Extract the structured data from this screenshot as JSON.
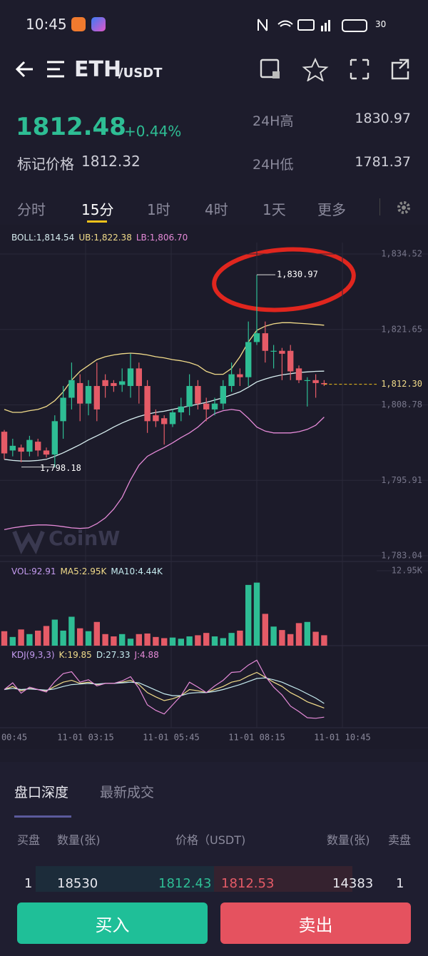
{
  "status": {
    "time": "10:45",
    "battery": "30"
  },
  "header": {
    "base": "ETH",
    "quote": "/USDT"
  },
  "ticker": {
    "price": "1812.48",
    "change": "+0.44%",
    "mark_label": "标记价格",
    "mark_price": "1812.32",
    "high_label": "24H高",
    "high": "1830.97",
    "low_label": "24H低",
    "low": "1781.37"
  },
  "tabs": [
    "分时",
    "15分",
    "1时",
    "4时",
    "1天",
    "更多"
  ],
  "chart_data": {
    "type": "candlestick",
    "watermark": "CoinW",
    "ylim": [
      1783.04,
      1834.52
    ],
    "yticks": [
      {
        "value": 1834.52,
        "label": "1,834.52"
      },
      {
        "value": 1821.65,
        "label": "1,821.65"
      },
      {
        "value": 1808.78,
        "label": "1,808.78"
      },
      {
        "value": 1795.91,
        "label": "1,795.91"
      },
      {
        "value": 1783.04,
        "label": "1,783.04"
      }
    ],
    "last_price": {
      "value": 1812.3,
      "label": "1,812.30"
    },
    "max_label": {
      "value": 1830.97,
      "label": "1,830.97"
    },
    "min_label": {
      "value": 1798.18,
      "label": "1,798.18"
    },
    "up_color": "#2ebd94",
    "down_color": "#e55b67",
    "open": [
      1804.2,
      1801,
      1801.5,
      1800.8,
      1802.5,
      1801,
      1800.3,
      1806,
      1810,
      1812.5,
      1809,
      1812,
      1813,
      1812.5,
      1812.2,
      1812,
      1815,
      1812,
      1807,
      1806.5,
      1805.5,
      1807.5,
      1808.5,
      1812,
      1809,
      1808,
      1809,
      1812,
      1814,
      1813.5,
      1819.5,
      1821,
      1818,
      1818,
      1818,
      1815,
      1813,
      1813,
      1812.5
    ],
    "close": [
      1800.5,
      1801.8,
      1800.8,
      1802.8,
      1801,
      1800.3,
      1806,
      1810,
      1813,
      1809,
      1812,
      1808,
      1812,
      1812,
      1812.8,
      1815,
      1812,
      1806,
      1806,
      1805.5,
      1807.5,
      1808.5,
      1812,
      1809,
      1808,
      1809,
      1812,
      1814,
      1813.5,
      1819.5,
      1821,
      1818,
      1818,
      1817.5,
      1814.5,
      1813,
      1813,
      1812.5,
      1812.3
    ],
    "high": [
      1804.5,
      1803,
      1802,
      1803.5,
      1803,
      1801.5,
      1807,
      1812,
      1816,
      1814,
      1813,
      1816,
      1814,
      1813,
      1815,
      1817.5,
      1816,
      1813,
      1808,
      1807,
      1808,
      1810,
      1814,
      1813,
      1810,
      1810,
      1813,
      1816,
      1815,
      1823,
      1830.97,
      1823,
      1819,
      1818.5,
      1819,
      1815.5,
      1813.5,
      1814,
      1813
    ],
    "low": [
      1799.5,
      1800,
      1799,
      1800,
      1800,
      1799.8,
      1798.18,
      1803,
      1808,
      1806,
      1807,
      1806,
      1810,
      1811,
      1811,
      1810,
      1809,
      1804,
      1805,
      1802,
      1805,
      1806,
      1807,
      1808,
      1806,
      1807,
      1808,
      1811,
      1812,
      1812,
      1819,
      1816,
      1815,
      1813,
      1813,
      1812.5,
      1808.5,
      1810,
      1812
    ],
    "series": [
      {
        "name": "BOLL:1,814.54",
        "color": "#d8eef0",
        "values": [
          1799.5,
          1799.3,
          1799.2,
          1799.2,
          1799.3,
          1799.5,
          1800,
          1800.6,
          1801.3,
          1802,
          1802.8,
          1803.5,
          1804.2,
          1805,
          1805.7,
          1806.3,
          1806.8,
          1807.2,
          1807.5,
          1807.7,
          1808,
          1808.3,
          1808.6,
          1808.9,
          1809.2,
          1809.6,
          1810,
          1810.5,
          1811,
          1811.8,
          1812.7,
          1813.2,
          1813.6,
          1813.9,
          1814.1,
          1814.3,
          1814.4,
          1814.5,
          1814.54
        ]
      },
      {
        "name": "UB:1,822.38",
        "color": "#f2dc8a",
        "values": [
          1808,
          1807.5,
          1807.5,
          1807.8,
          1808,
          1808.5,
          1809.5,
          1811,
          1813,
          1814.5,
          1815.5,
          1816.5,
          1817,
          1817.3,
          1817.5,
          1817.6,
          1817.5,
          1817.3,
          1817,
          1816.8,
          1816.5,
          1816.3,
          1816,
          1815.5,
          1814.5,
          1814,
          1814,
          1815,
          1817,
          1819.5,
          1821.5,
          1822.2,
          1822.6,
          1822.8,
          1822.8,
          1822.7,
          1822.6,
          1822.5,
          1822.38
        ]
      },
      {
        "name": "LB:1,806.70",
        "color": "#e58ad8",
        "values": [
          1787.5,
          1787.8,
          1788,
          1788.2,
          1788.3,
          1788.3,
          1788.2,
          1788,
          1787.8,
          1787.7,
          1787.8,
          1788.5,
          1789.5,
          1791,
          1793,
          1796,
          1798.5,
          1800,
          1800.8,
          1801.5,
          1802.3,
          1803.2,
          1804,
          1805,
          1806.3,
          1807.3,
          1807.8,
          1808,
          1807.8,
          1806.5,
          1805,
          1804.3,
          1804,
          1804,
          1804,
          1804.2,
          1804.6,
          1805.3,
          1806.7
        ]
      }
    ],
    "volume": {
      "legend": [
        {
          "text": "VOL:92.91",
          "color": "#c49bf0"
        },
        {
          "text": "MA5:2.95K",
          "color": "#f2dc8a"
        },
        {
          "text": "MA10:4.44K",
          "color": "#c6ecf0"
        }
      ],
      "ylim": [
        0,
        12950
      ],
      "yticks": [
        {
          "value": 12950,
          "label": "12.95K"
        }
      ],
      "values": [
        2500,
        1500,
        2800,
        2000,
        2600,
        3400,
        4500,
        2600,
        5000,
        3000,
        2500,
        4100,
        2000,
        1600,
        2000,
        1200,
        2000,
        2100,
        1500,
        1300,
        1400,
        1200,
        1600,
        1800,
        2200,
        1600,
        1300,
        2200,
        2600,
        10500,
        10900,
        5500,
        3300,
        2700,
        2000,
        3900,
        4100,
        2400,
        1800
      ]
    },
    "kdj": {
      "label": "KDJ(9,3,3)",
      "ylim": [
        -10,
        110
      ],
      "series": [
        {
          "name": "K:19.85",
          "color": "#f2dc8a",
          "values": [
            50,
            55,
            48,
            52,
            50,
            48,
            55,
            62,
            65,
            60,
            62,
            58,
            60,
            60,
            62,
            65,
            58,
            45,
            38,
            32,
            35,
            40,
            50,
            48,
            45,
            50,
            55,
            62,
            65,
            72,
            78,
            70,
            62,
            55,
            45,
            38,
            30,
            25,
            19.85
          ]
        },
        {
          "name": "D:27.33",
          "color": "#c6ecf0",
          "values": [
            50,
            52,
            50,
            51,
            50,
            49,
            51,
            55,
            58,
            59,
            60,
            59,
            60,
            60,
            61,
            62,
            61,
            55,
            49,
            43,
            40,
            40,
            44,
            45,
            45,
            47,
            50,
            54,
            58,
            63,
            68,
            69,
            66,
            62,
            56,
            50,
            43,
            36,
            27.33
          ]
        },
        {
          "name": "J:4.88",
          "color": "#e58ad8",
          "values": [
            50,
            61,
            44,
            54,
            50,
            46,
            63,
            76,
            79,
            62,
            66,
            56,
            60,
            60,
            64,
            71,
            52,
            25,
            16,
            10,
            25,
            40,
            62,
            54,
            45,
            56,
            65,
            78,
            79,
            90,
            98,
            72,
            54,
            41,
            23,
            14,
            4,
            3,
            4.88
          ]
        }
      ]
    },
    "time_labels": [
      "00:45",
      "11-01  03:15",
      "11-01  05:45",
      "11-01  08:15",
      "11-01  10:45"
    ]
  },
  "orderbook": {
    "tabs": [
      "盘口深度",
      "最新成交"
    ],
    "headers": [
      "买盘",
      "数量(张)",
      "价格（USDT)",
      "数量(张)",
      "卖盘"
    ],
    "row": [
      "1",
      "18530",
      "1812.43",
      "1812.53",
      "14383",
      "1"
    ]
  },
  "buttons": [
    "买入",
    "卖出"
  ]
}
